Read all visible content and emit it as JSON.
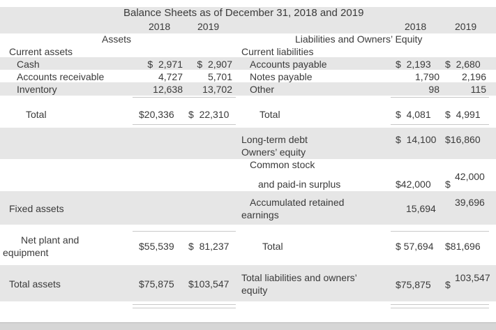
{
  "title": "Balance Sheets as of December 31, 2018 and 2019",
  "years": {
    "y2018": "2018",
    "y2019": "2019"
  },
  "assets": {
    "heading": "Assets",
    "current_assets": "Current assets",
    "cash": {
      "label": "Cash",
      "v2018": "$  2,971",
      "v2019": "$  2,907"
    },
    "receivables": {
      "label": "Accounts receivable",
      "v2018": "4,727",
      "v2019": "5,701"
    },
    "inventory": {
      "label": "Inventory",
      "v2018": "12,638",
      "v2019": "13,702"
    },
    "total_current": {
      "label": "Total",
      "v2018": "$20,336",
      "v2019": "$  22,310"
    },
    "fixed_assets": "Fixed assets",
    "net_plant": {
      "label_line1": "Net plant and",
      "label_line2": "equipment",
      "v2018": "$55,539",
      "v2019": "$  81,237"
    },
    "total_assets": {
      "label": "Total assets",
      "v2018": "$75,875",
      "v2019": "$103,547"
    }
  },
  "liabilities": {
    "heading": "Liabilities and Owners’ Equity",
    "current_liabilities": "Current liabilities",
    "payable": {
      "label": "Accounts payable",
      "v2018": "$  2,193",
      "v2019": "$  2,680"
    },
    "notes": {
      "label": "Notes payable",
      "v2018": "1,790",
      "v2019": "2,196"
    },
    "other": {
      "label": "Other",
      "v2018": "98",
      "v2019": "115"
    },
    "total_current": {
      "label": "Total",
      "v2018": "$  4,081",
      "v2019": "$  4,991"
    },
    "long_term_debt": {
      "label": "Long-term debt",
      "v2018": "$  14,100",
      "v2019": "$16,860"
    },
    "owners_equity": "Owners’ equity",
    "common_stock": {
      "label_line1": "Common stock",
      "label_line2": "and paid-in surplus",
      "v2018": "$42,000",
      "v2019_sign": "$",
      "v2019": "42,000"
    },
    "retained": {
      "label_line1": "Accumulated retained",
      "label_line2": "earnings",
      "v2018": "15,694",
      "v2019": "39,696"
    },
    "total_equity": {
      "label": "Total",
      "v2018": "$ 57,694",
      "v2019": "$81,696"
    },
    "total_liab_equity": {
      "label_line1": "Total liabilities and owners’",
      "label_line2": "equity",
      "v2018": "$75,875",
      "v2019_sign": "$",
      "v2019": "103,547"
    }
  }
}
